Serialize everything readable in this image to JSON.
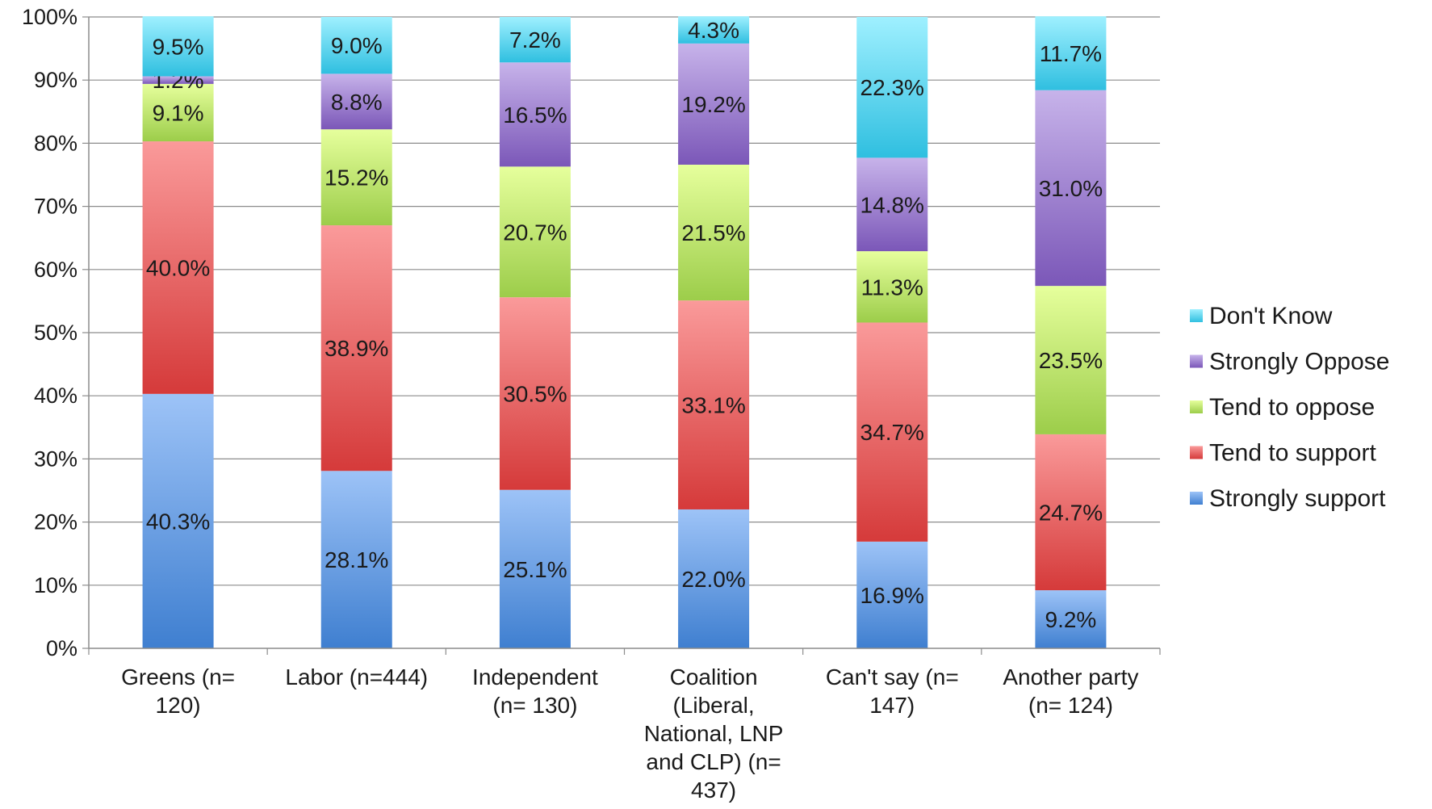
{
  "chart_data": {
    "type": "bar",
    "stacked": true,
    "percent_stacked": true,
    "title": "",
    "xlabel": "",
    "ylabel": "",
    "ylim": [
      0,
      100
    ],
    "yticks": [
      "0%",
      "10%",
      "20%",
      "30%",
      "40%",
      "50%",
      "60%",
      "70%",
      "80%",
      "90%",
      "100%"
    ],
    "grid": true,
    "legend_position": "right",
    "categories": [
      [
        "Greens (n=",
        "120)"
      ],
      [
        "Labor (n=444)"
      ],
      [
        "Independent",
        "(n= 130)"
      ],
      [
        "Coalition",
        "(Liberal,",
        "National, LNP",
        "and CLP) (n=",
        "437)"
      ],
      [
        "Can't say (n=",
        "147)"
      ],
      [
        "Another party",
        "(n= 124)"
      ]
    ],
    "series": [
      {
        "name": "Strongly support",
        "color_light": "#9dc3f7",
        "color_dark": "#3f7fd0",
        "values": [
          40.3,
          28.1,
          25.1,
          22.0,
          16.9,
          9.2
        ],
        "labels": [
          "40.3%",
          "28.1%",
          "25.1%",
          "22.0%",
          "16.9%",
          "9.2%"
        ]
      },
      {
        "name": "Tend to support",
        "color_light": "#fa9a9a",
        "color_dark": "#d53a3a",
        "values": [
          40.0,
          38.9,
          30.5,
          33.1,
          34.7,
          24.7
        ],
        "labels": [
          "40.0%",
          "38.9%",
          "30.5%",
          "33.1%",
          "34.7%",
          "24.7%"
        ]
      },
      {
        "name": "Tend to oppose",
        "color_light": "#e6ff9c",
        "color_dark": "#9ccd4a",
        "values": [
          9.1,
          15.2,
          20.7,
          21.5,
          11.3,
          23.5
        ],
        "labels": [
          "9.1%",
          "15.2%",
          "20.7%",
          "21.5%",
          "11.3%",
          "23.5%"
        ]
      },
      {
        "name": "Strongly Oppose",
        "color_light": "#c7b3ea",
        "color_dark": "#7b57b8",
        "values": [
          1.2,
          8.8,
          16.5,
          19.2,
          14.8,
          31.0
        ],
        "labels": [
          "1.2%",
          "8.8%",
          "16.5%",
          "19.2%",
          "14.8%",
          "31.0%"
        ]
      },
      {
        "name": "Don't Know",
        "color_light": "#9ff0ff",
        "color_dark": "#2fbfe0",
        "values": [
          9.5,
          9.0,
          7.2,
          4.3,
          22.3,
          11.7
        ],
        "labels": [
          "9.5%",
          "9.0%",
          "7.2%",
          "4.3%",
          "22.3%",
          "11.7%"
        ]
      }
    ],
    "legend_order": [
      "Don't Know",
      "Strongly Oppose",
      "Tend to oppose",
      "Tend to support",
      "Strongly support"
    ]
  }
}
